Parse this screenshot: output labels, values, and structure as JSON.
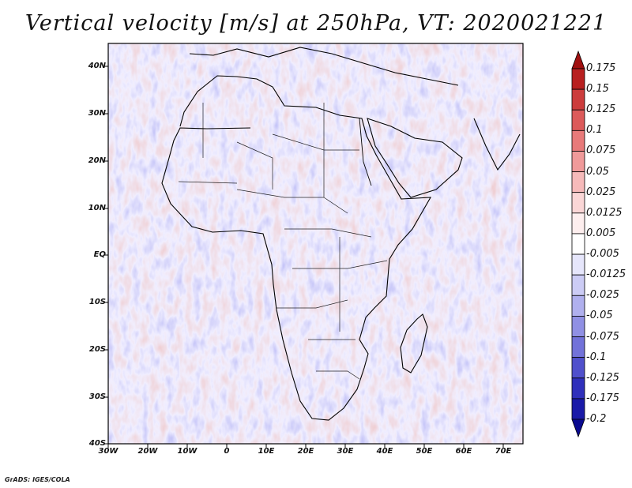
{
  "title": "Vertical velocity [m/s] at 250hPa, VT: 2020021221",
  "credit": "GrADS: IGES/COLA",
  "map": {
    "lat_labels": [
      "40N",
      "30N",
      "20N",
      "10N",
      "EQ",
      "10S",
      "20S",
      "30S",
      "40S"
    ],
    "lon_labels": [
      "30W",
      "20W",
      "10W",
      "0",
      "10E",
      "20E",
      "30E",
      "40E",
      "50E",
      "60E",
      "70E"
    ],
    "lat_range": [
      -40,
      45
    ],
    "lon_range": [
      -30,
      75
    ]
  },
  "colorbar": {
    "labels": [
      "0.175",
      "0.15",
      "0.125",
      "0.1",
      "0.075",
      "0.05",
      "0.025",
      "0.0125",
      "0.005",
      "-0.005",
      "-0.0125",
      "-0.025",
      "-0.05",
      "-0.075",
      "-0.1",
      "-0.125",
      "-0.175",
      "-0.2"
    ],
    "colors": [
      "#a01010",
      "#b82020",
      "#cc3c3c",
      "#dc5a5a",
      "#e87a7a",
      "#f09a9a",
      "#f6baba",
      "#fad6d6",
      "#fdeeee",
      "#ffffff",
      "#e6e6fb",
      "#ccccf5",
      "#b0b0ee",
      "#9090e4",
      "#7272d9",
      "#5050cc",
      "#3030bb",
      "#1a1aa8",
      "#0a0a90"
    ]
  }
}
